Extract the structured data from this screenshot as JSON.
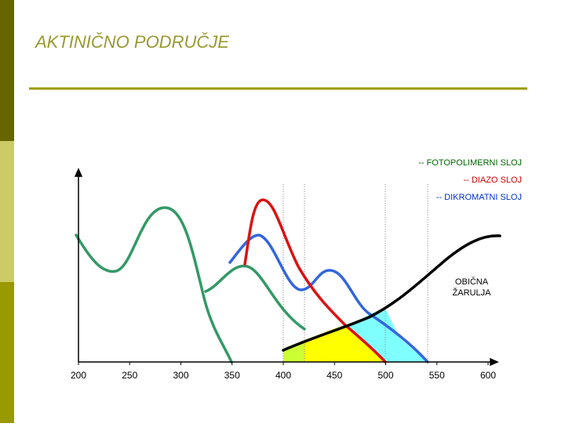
{
  "title": "AKTINIČNO PODRUČJE",
  "chart_data": {
    "type": "line",
    "xlim": [
      200,
      600
    ],
    "xticks": [
      200,
      250,
      300,
      350,
      400,
      450,
      500,
      550,
      600
    ],
    "legend": [
      "-- FOTOPOLIMERNI SLOJ",
      "-- DIAZO SLOJ",
      "-- DIKROMATNI SLOJ"
    ],
    "annotation": [
      "OBIČNA",
      "ŽARULJA"
    ]
  }
}
